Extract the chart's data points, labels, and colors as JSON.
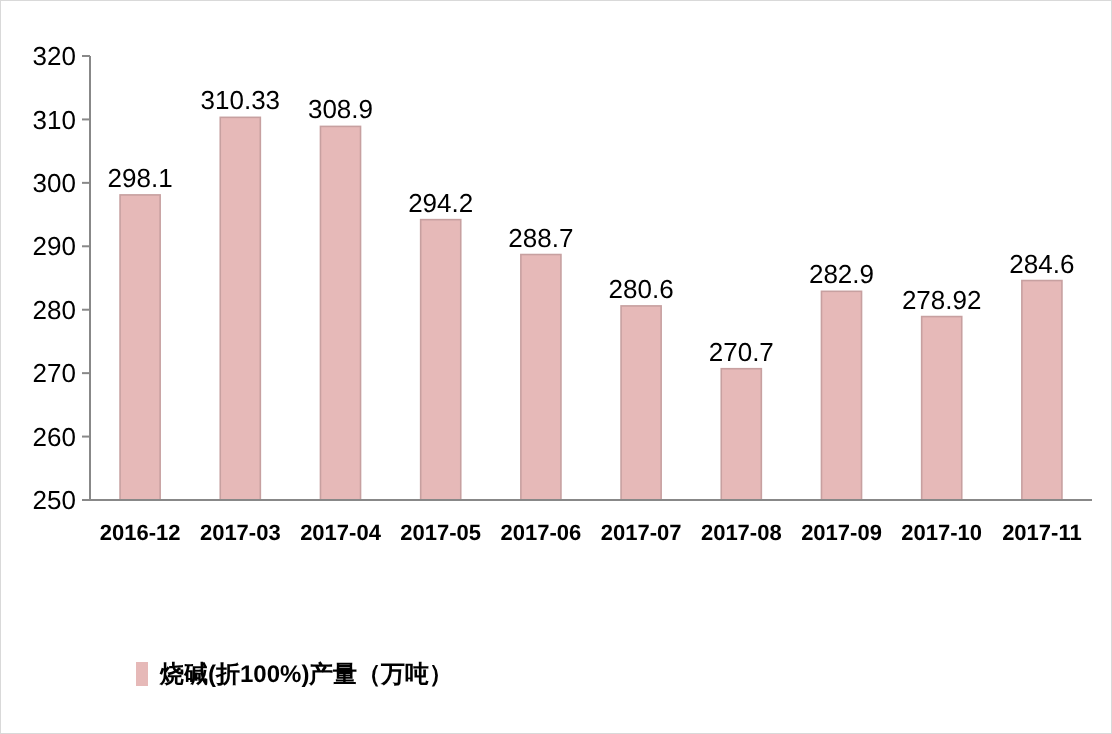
{
  "chart_data": {
    "type": "bar",
    "categories": [
      "2016-12",
      "2017-03",
      "2017-04",
      "2017-05",
      "2017-06",
      "2017-07",
      "2017-08",
      "2017-09",
      "2017-10",
      "2017-11"
    ],
    "series": [
      {
        "name": "烧碱(折100%)产量（万吨）",
        "color": "#e6b9b8",
        "values": [
          298.1,
          310.33,
          308.9,
          294.2,
          288.7,
          280.6,
          270.7,
          282.9,
          278.92,
          284.6
        ]
      }
    ],
    "ylim": [
      250,
      320
    ],
    "yticks": [
      250,
      260,
      270,
      280,
      290,
      300,
      310,
      320
    ],
    "data_labels": true,
    "legend": "bottom left",
    "grid": false
  }
}
